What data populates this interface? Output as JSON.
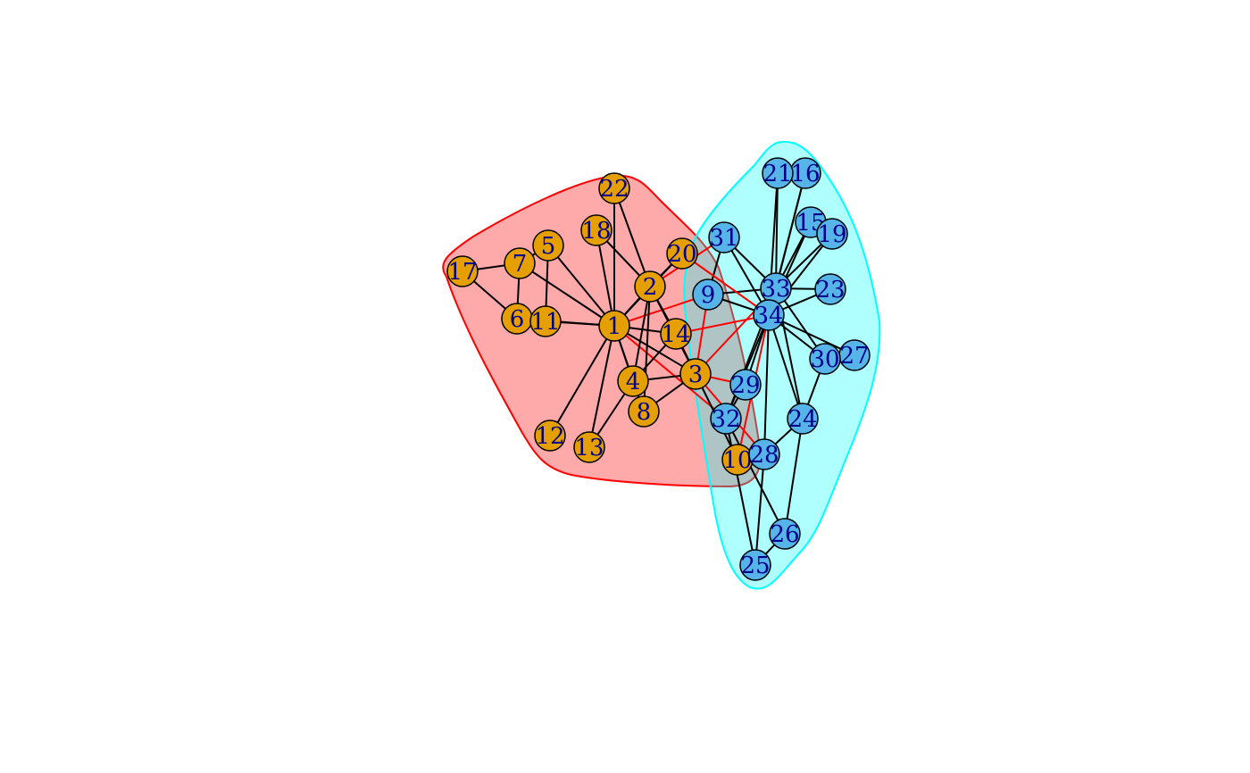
{
  "colors": {
    "group_a_node": "#E69F00",
    "group_b_node": "#56B4E9",
    "group_a_hull_fill": "#ff000055",
    "group_a_hull_stroke": "#ff0000",
    "group_b_hull_fill": "#00ffff50",
    "group_b_hull_stroke": "#00ffff",
    "within_edge": "#000000",
    "between_edge": "#ff0000",
    "label": "#00008b"
  },
  "nodes": [
    {
      "id": 1,
      "label": "1",
      "group": "a"
    },
    {
      "id": 2,
      "label": "2",
      "group": "a"
    },
    {
      "id": 3,
      "label": "3",
      "group": "a"
    },
    {
      "id": 4,
      "label": "4",
      "group": "a"
    },
    {
      "id": 5,
      "label": "5",
      "group": "a"
    },
    {
      "id": 6,
      "label": "6",
      "group": "a"
    },
    {
      "id": 7,
      "label": "7",
      "group": "a"
    },
    {
      "id": 8,
      "label": "8",
      "group": "a"
    },
    {
      "id": 9,
      "label": "9",
      "group": "b"
    },
    {
      "id": 10,
      "label": "10",
      "group": "a"
    },
    {
      "id": 11,
      "label": "11",
      "group": "a"
    },
    {
      "id": 12,
      "label": "12",
      "group": "a"
    },
    {
      "id": 13,
      "label": "13",
      "group": "a"
    },
    {
      "id": 14,
      "label": "14",
      "group": "a"
    },
    {
      "id": 15,
      "label": "15",
      "group": "b"
    },
    {
      "id": 16,
      "label": "16",
      "group": "b"
    },
    {
      "id": 17,
      "label": "17",
      "group": "a"
    },
    {
      "id": 18,
      "label": "18",
      "group": "a"
    },
    {
      "id": 19,
      "label": "19",
      "group": "b"
    },
    {
      "id": 20,
      "label": "20",
      "group": "a"
    },
    {
      "id": 21,
      "label": "21",
      "group": "b"
    },
    {
      "id": 22,
      "label": "22",
      "group": "a"
    },
    {
      "id": 23,
      "label": "23",
      "group": "b"
    },
    {
      "id": 24,
      "label": "24",
      "group": "b"
    },
    {
      "id": 25,
      "label": "25",
      "group": "b"
    },
    {
      "id": 26,
      "label": "26",
      "group": "b"
    },
    {
      "id": 27,
      "label": "27",
      "group": "b"
    },
    {
      "id": 28,
      "label": "28",
      "group": "b"
    },
    {
      "id": 29,
      "label": "29",
      "group": "b"
    },
    {
      "id": 30,
      "label": "30",
      "group": "b"
    },
    {
      "id": 31,
      "label": "31",
      "group": "b"
    },
    {
      "id": 32,
      "label": "32",
      "group": "b"
    },
    {
      "id": 33,
      "label": "33",
      "group": "b"
    },
    {
      "id": 34,
      "label": "34",
      "group": "b"
    }
  ],
  "edges": [
    [
      1,
      2
    ],
    [
      1,
      3
    ],
    [
      1,
      4
    ],
    [
      1,
      5
    ],
    [
      1,
      6
    ],
    [
      1,
      7
    ],
    [
      1,
      8
    ],
    [
      1,
      9
    ],
    [
      1,
      11
    ],
    [
      1,
      12
    ],
    [
      1,
      13
    ],
    [
      1,
      14
    ],
    [
      1,
      18
    ],
    [
      1,
      20
    ],
    [
      1,
      22
    ],
    [
      1,
      32
    ],
    [
      2,
      3
    ],
    [
      2,
      4
    ],
    [
      2,
      8
    ],
    [
      2,
      14
    ],
    [
      2,
      18
    ],
    [
      2,
      20
    ],
    [
      2,
      22
    ],
    [
      2,
      31
    ],
    [
      3,
      4
    ],
    [
      3,
      8
    ],
    [
      3,
      9
    ],
    [
      3,
      10
    ],
    [
      3,
      14
    ],
    [
      3,
      28
    ],
    [
      3,
      29
    ],
    [
      3,
      33
    ],
    [
      4,
      8
    ],
    [
      4,
      13
    ],
    [
      4,
      14
    ],
    [
      5,
      7
    ],
    [
      5,
      11
    ],
    [
      6,
      7
    ],
    [
      6,
      11
    ],
    [
      6,
      17
    ],
    [
      7,
      17
    ],
    [
      9,
      31
    ],
    [
      9,
      33
    ],
    [
      9,
      34
    ],
    [
      10,
      34
    ],
    [
      14,
      34
    ],
    [
      15,
      33
    ],
    [
      15,
      34
    ],
    [
      16,
      33
    ],
    [
      16,
      34
    ],
    [
      19,
      33
    ],
    [
      19,
      34
    ],
    [
      20,
      34
    ],
    [
      21,
      33
    ],
    [
      21,
      34
    ],
    [
      23,
      33
    ],
    [
      23,
      34
    ],
    [
      24,
      26
    ],
    [
      24,
      28
    ],
    [
      24,
      30
    ],
    [
      24,
      33
    ],
    [
      24,
      34
    ],
    [
      25,
      26
    ],
    [
      25,
      28
    ],
    [
      25,
      32
    ],
    [
      26,
      32
    ],
    [
      27,
      30
    ],
    [
      27,
      34
    ],
    [
      28,
      34
    ],
    [
      29,
      32
    ],
    [
      29,
      34
    ],
    [
      30,
      33
    ],
    [
      30,
      34
    ],
    [
      31,
      33
    ],
    [
      31,
      34
    ],
    [
      32,
      33
    ],
    [
      32,
      34
    ],
    [
      33,
      34
    ]
  ]
}
